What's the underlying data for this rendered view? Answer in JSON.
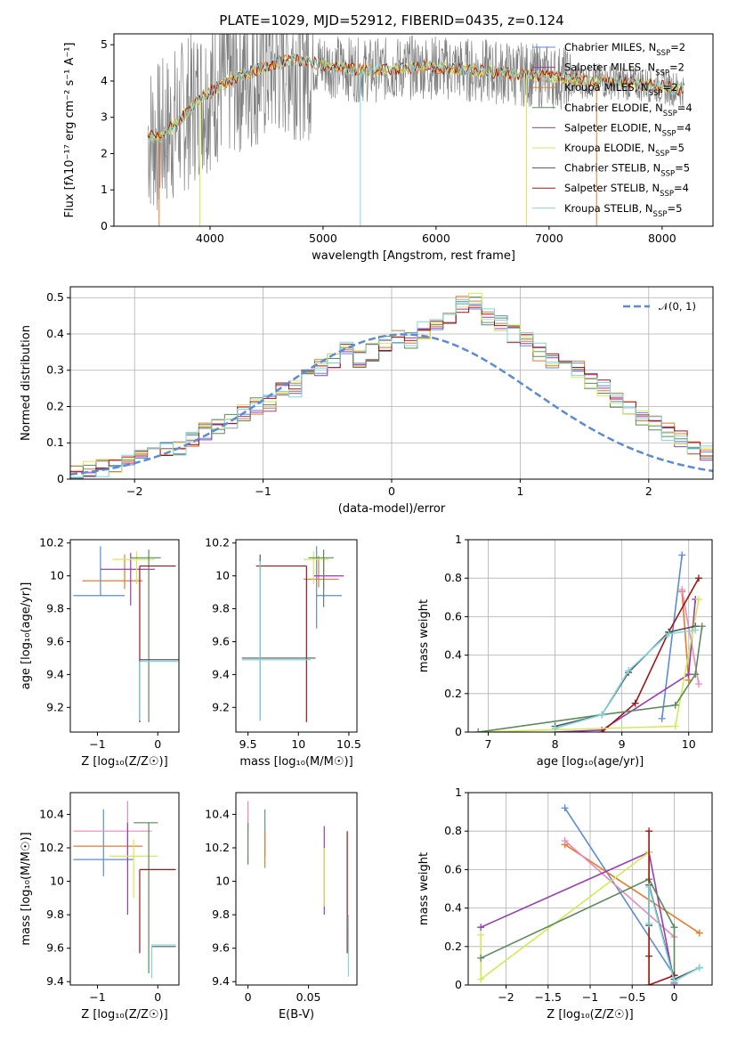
{
  "figure": {
    "title": "PLATE=1029, MJD=52912, FIBERID=0435, z=0.124"
  },
  "colors": {
    "chabrier_miles": "#5b8bd6",
    "salpeter_miles": "#9a3bb7",
    "kroupa_miles": "#e8792a",
    "chabrier_elodie": "#5a8a5a",
    "salpeter_elodie": "#9a3bb7",
    "kroupa_elodie": "#d3ea52",
    "chabrier_stelib": "#555555",
    "salpeter_stelib": "#a31515",
    "kroupa_stelib": "#7fd6dc",
    "pink": "#e98ab8",
    "normal_curve": "#5b8bd6"
  },
  "chart_data": [
    {
      "id": "spectrum",
      "type": "line",
      "xlabel": "wavelength [Angstrom, rest frame]",
      "ylabel": "Flux [fλ10⁻¹⁷ erg cm⁻² s⁻¹ A⁻¹]",
      "xlim": [
        3150,
        8450
      ],
      "ylim": [
        0,
        5.3
      ],
      "xticks": [
        4000,
        5000,
        6000,
        7000,
        8000
      ],
      "yticks": [
        0,
        1,
        2,
        3,
        4,
        5
      ],
      "grid": false,
      "legend_position": "top-right",
      "legend": [
        "Chabrier MILES, N_SSP=2",
        "Salpeter MILES, N_SSP=2",
        "Kroupa MILES, N_SSP=2",
        "Chabrier ELODIE, N_SSP=4",
        "Salpeter ELODIE, N_SSP=4",
        "Kroupa ELODIE, N_SSP=5",
        "Chabrier STELIB, N_SSP=5",
        "Salpeter STELIB, N_SSP=4",
        "Kroupa STELIB, N_SSP=5"
      ],
      "data_continuum": {
        "x": [
          3450,
          3550,
          3650,
          3750,
          3850,
          3950,
          4100,
          4300,
          4500,
          4700,
          4900,
          5100,
          5300,
          5500,
          5700,
          5900,
          6100,
          6300,
          6500,
          6700,
          6900,
          7100,
          7300,
          7500,
          7700,
          7900,
          8100,
          8200
        ],
        "y": [
          2.5,
          2.4,
          2.7,
          3.0,
          3.3,
          3.6,
          3.9,
          4.2,
          4.4,
          4.6,
          4.5,
          4.4,
          4.3,
          4.3,
          4.35,
          4.4,
          4.35,
          4.3,
          4.25,
          4.2,
          4.15,
          4.1,
          4.0,
          4.0,
          3.95,
          3.9,
          3.8,
          3.75
        ]
      },
      "model_spikes_x": [
        3550,
        3910,
        5330,
        6800,
        7420
      ]
    },
    {
      "id": "residuals",
      "type": "histogram",
      "xlabel": "(data-model)/error",
      "ylabel": "Normed distribution",
      "xlim": [
        -2.5,
        2.5
      ],
      "ylim": [
        0,
        0.53
      ],
      "xticks": [
        -2,
        -1,
        0,
        1,
        2
      ],
      "yticks": [
        0,
        0.1,
        0.2,
        0.3,
        0.4,
        0.5
      ],
      "grid": true,
      "legend_position": "top-right",
      "legend": [
        "𝒩(0, 1)"
      ],
      "bin_start": -2.5,
      "bin_width": 0.1,
      "series": [
        {
          "values": [
            0.015,
            0.025,
            0.03,
            0.04,
            0.045,
            0.06,
            0.07,
            0.08,
            0.09,
            0.11,
            0.13,
            0.15,
            0.16,
            0.18,
            0.2,
            0.21,
            0.24,
            0.25,
            0.28,
            0.31,
            0.33,
            0.36,
            0.33,
            0.35,
            0.37,
            0.39,
            0.38,
            0.41,
            0.42,
            0.44,
            0.48,
            0.49,
            0.45,
            0.43,
            0.4,
            0.38,
            0.35,
            0.33,
            0.32,
            0.3,
            0.27,
            0.25,
            0.22,
            0.2,
            0.17,
            0.15,
            0.13,
            0.11,
            0.09,
            0.07
          ]
        }
      ],
      "normal_curve": {
        "mean": 0.1,
        "sigma": 1.0
      }
    },
    {
      "id": "age_vs_Z",
      "type": "errorbar",
      "xlabel": "Z [log₁₀(Z/Z☉)]",
      "ylabel": "age  [log₁₀(age/yr)]",
      "xlim": [
        -1.45,
        0.35
      ],
      "ylim": [
        9.05,
        10.22
      ],
      "xticks": [
        -1,
        0
      ],
      "yticks": [
        9.2,
        9.4,
        9.6,
        9.8,
        10.0,
        10.2
      ],
      "grid": false,
      "points": [
        {
          "color": "chabrier_miles",
          "x": -0.95,
          "xerr": [
            0.45,
            0.4
          ],
          "y": 9.88,
          "yerr": [
            0.0,
            0.3
          ]
        },
        {
          "color": "kroupa_miles",
          "x": -0.55,
          "xerr": [
            0.7,
            0.3
          ],
          "y": 9.97,
          "yerr": [
            0.05,
            0.16
          ]
        },
        {
          "color": "salpeter_miles",
          "x": -0.45,
          "xerr": [
            0.5,
            0.4
          ],
          "y": 10.04,
          "yerr": [
            0.22,
            0.1
          ]
        },
        {
          "color": "kroupa_elodie",
          "x": -0.35,
          "xerr": [
            0.4,
            0.3
          ],
          "y": 10.1,
          "yerr": [
            0.15,
            0.05
          ]
        },
        {
          "color": "chabrier_elodie",
          "x": -0.15,
          "xerr": [
            0.3,
            0.2
          ],
          "y": 10.11,
          "yerr": [
            1.0,
            0.05
          ]
        },
        {
          "color": "salpeter_stelib",
          "x": -0.3,
          "xerr": [
            0.0,
            0.6
          ],
          "y": 10.06,
          "yerr": [
            0.95,
            0.0
          ]
        },
        {
          "color": "chabrier_stelib",
          "x": -0.3,
          "xerr": [
            0.0,
            0.65
          ],
          "y": 9.49,
          "yerr": [
            0.38,
            0.0
          ]
        },
        {
          "color": "kroupa_stelib",
          "x": -0.3,
          "xerr": [
            0.0,
            0.63
          ],
          "y": 9.48,
          "yerr": [
            0.36,
            0.0
          ]
        }
      ]
    },
    {
      "id": "age_vs_mass",
      "type": "errorbar",
      "xlabel": "mass [log₁₀(M/M☉)]",
      "ylabel": "",
      "xlim": [
        9.38,
        10.58
      ],
      "ylim": [
        9.05,
        10.22
      ],
      "xticks": [
        9.5,
        10.0,
        10.5
      ],
      "yticks": [
        9.2,
        9.4,
        9.6,
        9.8,
        10.0,
        10.2
      ],
      "grid": false,
      "points": [
        {
          "color": "chabrier_miles",
          "x": 10.18,
          "xerr": [
            0.0,
            0.25
          ],
          "y": 9.88,
          "yerr": [
            0.2,
            0.3
          ]
        },
        {
          "color": "kroupa_miles",
          "x": 10.2,
          "xerr": [
            0.15,
            0.2
          ],
          "y": 9.98,
          "yerr": [
            0.05,
            0.14
          ]
        },
        {
          "color": "salpeter_miles",
          "x": 10.25,
          "xerr": [
            0.1,
            0.2
          ],
          "y": 10.0,
          "yerr": [
            0.08,
            0.1
          ]
        },
        {
          "color": "kroupa_elodie",
          "x": 10.15,
          "xerr": [
            0.1,
            0.15
          ],
          "y": 10.1,
          "yerr": [
            0.15,
            0.05
          ]
        },
        {
          "color": "chabrier_elodie",
          "x": 10.25,
          "xerr": [
            0.15,
            0.1
          ],
          "y": 10.11,
          "yerr": [
            0.3,
            0.05
          ]
        },
        {
          "color": "salpeter_stelib",
          "x": 10.08,
          "xerr": [
            0.5,
            0.0
          ],
          "y": 10.06,
          "yerr": [
            0.95,
            0.0
          ]
        },
        {
          "color": "chabrier_stelib",
          "x": 9.62,
          "xerr": [
            0.18,
            0.55
          ],
          "y": 9.5,
          "yerr": [
            0.38,
            0.63
          ]
        },
        {
          "color": "kroupa_stelib",
          "x": 9.62,
          "xerr": [
            0.18,
            0.5
          ],
          "y": 9.49,
          "yerr": [
            0.37,
            0.6
          ]
        }
      ]
    },
    {
      "id": "weight_vs_age",
      "type": "line",
      "xlabel": "age  [log₁₀(age/yr)]",
      "ylabel": "mass weight",
      "xlim": [
        6.7,
        10.35
      ],
      "ylim": [
        0,
        1.0
      ],
      "xticks": [
        7,
        8,
        9,
        10
      ],
      "yticks": [
        0.0,
        0.2,
        0.4,
        0.6,
        0.8,
        1.0
      ],
      "grid": true,
      "series": [
        {
          "color": "chabrier_miles",
          "x": [
            9.6,
            9.9
          ],
          "y": [
            0.07,
            0.92
          ]
        },
        {
          "color": "kroupa_miles",
          "x": [
            9.9,
            10.0
          ],
          "y": [
            0.73,
            0.27
          ]
        },
        {
          "color": "pink",
          "x": [
            9.9,
            10.15
          ],
          "y": [
            0.74,
            0.25
          ]
        },
        {
          "color": "salpeter_miles",
          "x": [
            8.0,
            8.7,
            10.0,
            10.1
          ],
          "y": [
            0.0,
            0.01,
            0.3,
            0.69
          ]
        },
        {
          "color": "salpeter_stelib",
          "x": [
            8.7,
            9.2,
            9.7,
            10.15
          ],
          "y": [
            0.0,
            0.15,
            0.52,
            0.8
          ]
        },
        {
          "color": "kroupa_elodie",
          "x": [
            6.85,
            9.8,
            10.15
          ],
          "y": [
            0.0,
            0.03,
            0.69
          ]
        },
        {
          "color": "chabrier_elodie",
          "x": [
            6.85,
            8.7,
            9.8,
            10.1,
            10.2
          ],
          "y": [
            0.0,
            0.09,
            0.14,
            0.3,
            0.55
          ]
        },
        {
          "color": "chabrier_stelib",
          "x": [
            8.0,
            8.7,
            9.1,
            9.7,
            10.1
          ],
          "y": [
            0.03,
            0.09,
            0.31,
            0.52,
            0.55
          ]
        },
        {
          "color": "kroupa_stelib",
          "x": [
            8.0,
            8.7,
            9.1,
            9.7,
            10.1
          ],
          "y": [
            0.02,
            0.09,
            0.32,
            0.51,
            0.53
          ]
        }
      ]
    },
    {
      "id": "mass_vs_Z",
      "type": "errorbar",
      "xlabel": "Z [log₁₀(Z/Z☉)]",
      "ylabel": "mass [log₁₀(M/M☉)]",
      "xlim": [
        -1.45,
        0.35
      ],
      "ylim": [
        9.38,
        10.53
      ],
      "xticks": [
        -1,
        0
      ],
      "yticks": [
        9.4,
        9.6,
        9.8,
        10.0,
        10.2,
        10.4
      ],
      "grid": false,
      "points": [
        {
          "color": "chabrier_miles",
          "x": -0.9,
          "xerr": [
            0.5,
            0.5
          ],
          "y": 10.13,
          "yerr": [
            0.1,
            0.3
          ]
        },
        {
          "color": "kroupa_miles",
          "x": -0.7,
          "xerr": [
            0.7,
            0.45
          ],
          "y": 10.21,
          "yerr": [
            0.0,
            0.0
          ]
        },
        {
          "color": "pink",
          "x": -0.5,
          "xerr": [
            0.9,
            0.4
          ],
          "y": 10.3,
          "yerr": [
            0.2,
            0.18
          ]
        },
        {
          "color": "salpeter_miles",
          "x": -0.5,
          "xerr": [
            0.0,
            0.0
          ],
          "y": 10.1,
          "yerr": [
            0.3,
            0.25
          ]
        },
        {
          "color": "kroupa_elodie",
          "x": -0.4,
          "xerr": [
            0.4,
            0.4
          ],
          "y": 10.15,
          "yerr": [
            0.25,
            0.1
          ]
        },
        {
          "color": "chabrier_elodie",
          "x": -0.15,
          "xerr": [
            0.25,
            0.15
          ],
          "y": 10.35,
          "yerr": [
            0.9,
            0.0
          ]
        },
        {
          "color": "salpeter_stelib",
          "x": -0.3,
          "xerr": [
            0.0,
            0.6
          ],
          "y": 10.07,
          "yerr": [
            0.5,
            0.0
          ]
        },
        {
          "color": "chabrier_stelib",
          "x": -0.1,
          "xerr": [
            0.0,
            0.4
          ],
          "y": 9.61,
          "yerr": [
            0.0,
            0.0
          ]
        },
        {
          "color": "kroupa_stelib",
          "x": -0.1,
          "xerr": [
            0.0,
            0.4
          ],
          "y": 9.62,
          "yerr": [
            0.2,
            0.0
          ]
        }
      ]
    },
    {
      "id": "mass_vs_ebv",
      "type": "errorbar",
      "xlabel": "E(B-V)",
      "ylabel": "",
      "xlim": [
        -0.01,
        0.09
      ],
      "ylim": [
        9.38,
        10.53
      ],
      "xticks": [
        0.0,
        0.05
      ],
      "yticks": [
        9.4,
        9.6,
        9.8,
        10.0,
        10.2,
        10.4
      ],
      "grid": false,
      "points": [
        {
          "color": "pink",
          "x": 0.0,
          "xerr": [
            0,
            0
          ],
          "y": 10.4,
          "yerr": [
            0.1,
            0.08
          ]
        },
        {
          "color": "chabrier_elodie",
          "x": 0.0,
          "xerr": [
            0,
            0
          ],
          "y": 10.25,
          "yerr": [
            0.15,
            0.1
          ]
        },
        {
          "color": "chabrier_miles",
          "x": 0.014,
          "xerr": [
            0,
            0
          ],
          "y": 10.3,
          "yerr": [
            0.15,
            0.13
          ]
        },
        {
          "color": "kroupa_miles",
          "x": 0.014,
          "xerr": [
            0,
            0
          ],
          "y": 10.2,
          "yerr": [
            0.12,
            0.1
          ]
        },
        {
          "color": "salpeter_miles",
          "x": 0.063,
          "xerr": [
            0,
            0
          ],
          "y": 10.0,
          "yerr": [
            0.2,
            0.33
          ]
        },
        {
          "color": "kroupa_elodie",
          "x": 0.063,
          "xerr": [
            0,
            0
          ],
          "y": 10.0,
          "yerr": [
            0.15,
            0.2
          ]
        },
        {
          "color": "salpeter_stelib",
          "x": 0.082,
          "xerr": [
            0,
            0
          ],
          "y": 10.07,
          "yerr": [
            0.5,
            0.23
          ]
        },
        {
          "color": "kroupa_stelib",
          "x": 0.083,
          "xerr": [
            0,
            0
          ],
          "y": 9.8,
          "yerr": [
            0.37,
            0.0
          ]
        }
      ]
    },
    {
      "id": "weight_vs_Z",
      "type": "line",
      "xlabel": "Z [log₁₀(Z/Z☉)]",
      "ylabel": "mass weight",
      "xlim": [
        -2.45,
        0.45
      ],
      "ylim": [
        0,
        1.0
      ],
      "xticks": [
        -2.0,
        -1.5,
        -1.0,
        -0.5,
        0.0
      ],
      "yticks": [
        0.0,
        0.2,
        0.4,
        0.6,
        0.8,
        1.0
      ],
      "grid": true,
      "series": [
        {
          "color": "chabrier_miles",
          "x": [
            -1.3,
            0.0
          ],
          "y": [
            0.92,
            0.05
          ]
        },
        {
          "color": "kroupa_miles",
          "x": [
            -1.3,
            0.3
          ],
          "y": [
            0.73,
            0.27
          ]
        },
        {
          "color": "pink",
          "x": [
            -1.3,
            0.0
          ],
          "y": [
            0.75,
            0.25
          ]
        },
        {
          "color": "salpeter_miles",
          "x": [
            -2.3,
            -0.3,
            0.0
          ],
          "y": [
            0.3,
            0.69,
            0.01
          ]
        },
        {
          "color": "kroupa_elodie",
          "x": [
            -2.3,
            -2.3,
            -0.3,
            -0.3
          ],
          "y": [
            0.26,
            0.03,
            0.69,
            0.0
          ]
        },
        {
          "color": "chabrier_elodie",
          "x": [
            -2.3,
            -0.3,
            0.0,
            0.0
          ],
          "y": [
            0.14,
            0.55,
            0.3,
            0.0
          ]
        },
        {
          "color": "salpeter_stelib",
          "x": [
            -0.3,
            -0.3,
            -0.3,
            0.0
          ],
          "y": [
            0.15,
            0.8,
            0.0,
            0.05
          ]
        },
        {
          "color": "chabrier_stelib",
          "x": [
            -0.3,
            -0.3,
            0.0,
            0.3
          ],
          "y": [
            0.31,
            0.52,
            0.03,
            0.09
          ]
        },
        {
          "color": "kroupa_stelib",
          "x": [
            -0.3,
            -0.3,
            0.0,
            0.3
          ],
          "y": [
            0.32,
            0.51,
            0.02,
            0.09
          ]
        }
      ]
    }
  ]
}
